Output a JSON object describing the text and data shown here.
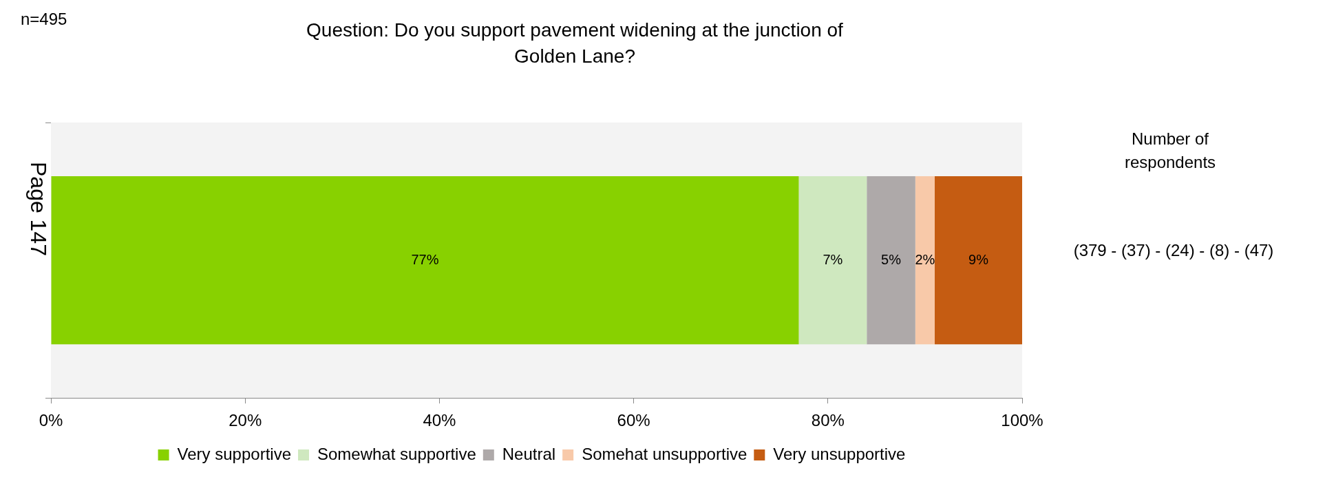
{
  "chart_data": {
    "type": "bar",
    "orientation": "horizontal",
    "stacked": true,
    "title": "Question: Do you support pavement widening at the junction of Golden Lane?",
    "categories": [
      null
    ],
    "series": [
      {
        "name": "Very supportive",
        "color": "#88d100",
        "values": [
          77
        ],
        "value_labels": [
          "77%"
        ]
      },
      {
        "name": "Somewhat supportive",
        "color": "#cfe8bf",
        "values": [
          7
        ],
        "value_labels": [
          "7%"
        ]
      },
      {
        "name": "Neutral",
        "color": "#aea9a9",
        "values": [
          5
        ],
        "value_labels": [
          "5%"
        ]
      },
      {
        "name": "Somehat unsupportive",
        "color": "#f8c9a9",
        "values": [
          2
        ],
        "value_labels": [
          "2%"
        ]
      },
      {
        "name": "Very unsupportive",
        "color": "#c55c12",
        "values": [
          9
        ],
        "value_labels": [
          "9%"
        ]
      }
    ],
    "xlim": [
      0,
      100
    ],
    "xticks": [
      {
        "value": 0,
        "label": "0%"
      },
      {
        "value": 20,
        "label": "20%"
      },
      {
        "value": 40,
        "label": "40%"
      },
      {
        "value": 60,
        "label": "60%"
      },
      {
        "value": 80,
        "label": "80%"
      },
      {
        "value": 100,
        "label": "100%"
      }
    ],
    "legend": "bottom",
    "grid": false,
    "annotations": [
      "n=495",
      "Page 147",
      "Number of respondents",
      "(379 - (37) - (24) - (8) - (47)"
    ]
  }
}
